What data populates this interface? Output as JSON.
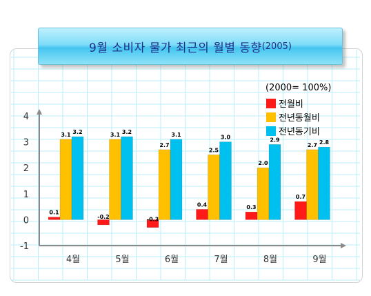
{
  "title": {
    "main": "9월 소비자 물가 최근의 월별 동향",
    "year": "(2005)"
  },
  "legend": {
    "note": "(2000= 100%)"
  },
  "colors": {
    "s0": "#ff1a1a",
    "s1": "#ffc000",
    "s2": "#00c0f0",
    "grid": "#b8eef8",
    "axis": "#8a8a8a"
  },
  "chart_data": {
    "type": "bar",
    "categories": [
      "4월",
      "5월",
      "6월",
      "7월",
      "8월",
      "9월"
    ],
    "series": [
      {
        "name": "전월비",
        "values": [
          0.1,
          -0.2,
          -0.3,
          0.4,
          0.3,
          0.7
        ],
        "labels": [
          "0.1",
          "-0.2",
          "-0.3",
          "0.4",
          "0.3",
          "0.7"
        ]
      },
      {
        "name": "전년동월비",
        "values": [
          3.1,
          3.1,
          2.7,
          2.5,
          2.0,
          2.7
        ],
        "labels": [
          "3.1",
          "3.1",
          "2.7",
          "2.5",
          "2.0",
          "2.7"
        ]
      },
      {
        "name": "전년동기비",
        "values": [
          3.2,
          3.2,
          3.1,
          3.0,
          2.9,
          2.8
        ],
        "labels": [
          "3.2",
          "3.2",
          "3.1",
          "3.0",
          "2.9",
          "2.8"
        ]
      }
    ],
    "ylim": [
      -1,
      4
    ],
    "yticks": [
      "-1",
      "0",
      "1",
      "2",
      "3",
      "4"
    ],
    "grid": true,
    "legend_position": "top-right"
  }
}
